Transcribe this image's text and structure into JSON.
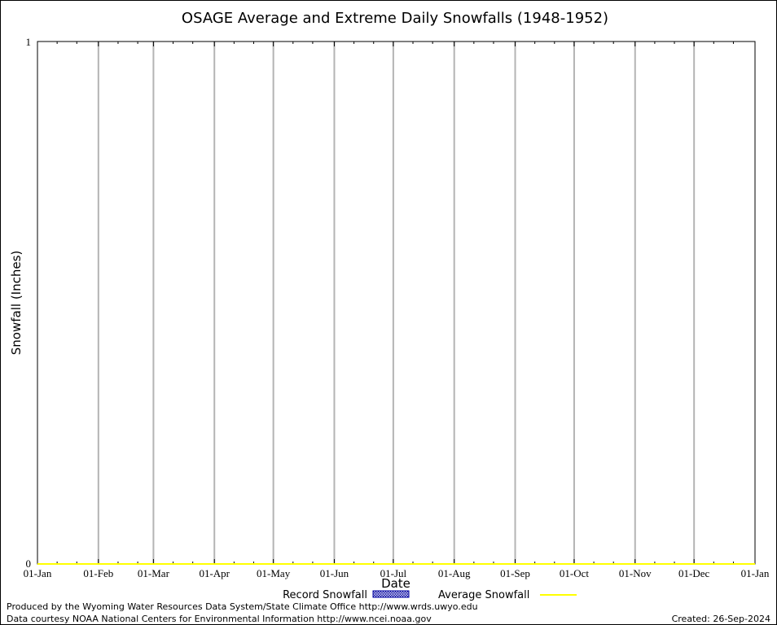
{
  "chart_data": {
    "type": "line",
    "title": "OSAGE Average and Extreme Daily Snowfalls (1948-1952)",
    "xlabel": "Date",
    "ylabel": "Snowfall (Inches)",
    "ylim": [
      0,
      1
    ],
    "yticks": [
      "0",
      "1"
    ],
    "xtick_labels": [
      "01-Jan",
      "01-Feb",
      "01-Mar",
      "01-Apr",
      "01-May",
      "01-Jun",
      "01-Jul",
      "01-Aug",
      "01-Sep",
      "01-Oct",
      "01-Nov",
      "01-Dec",
      "01-Jan"
    ],
    "xtick_days": [
      0,
      31,
      59,
      90,
      120,
      151,
      181,
      212,
      243,
      273,
      304,
      334,
      365
    ],
    "grid": "vertical month lines",
    "legend_placement": "bottom",
    "series": [
      {
        "name": "Record Snowfall",
        "style": "hatched bar",
        "color": "#0000a0",
        "values": []
      },
      {
        "name": "Average Snowfall",
        "style": "line",
        "color": "#ffff00",
        "values": [
          0,
          0
        ]
      }
    ]
  },
  "footer": {
    "produced_by": "Produced by the Wyoming Water Resources Data System/State Climate Office http://www.wrds.uwyo.edu",
    "courtesy": "Data courtesy NOAA National Centers for Environmental Information http://www.ncei.noaa.gov",
    "created": "Created: 26-Sep-2024"
  }
}
